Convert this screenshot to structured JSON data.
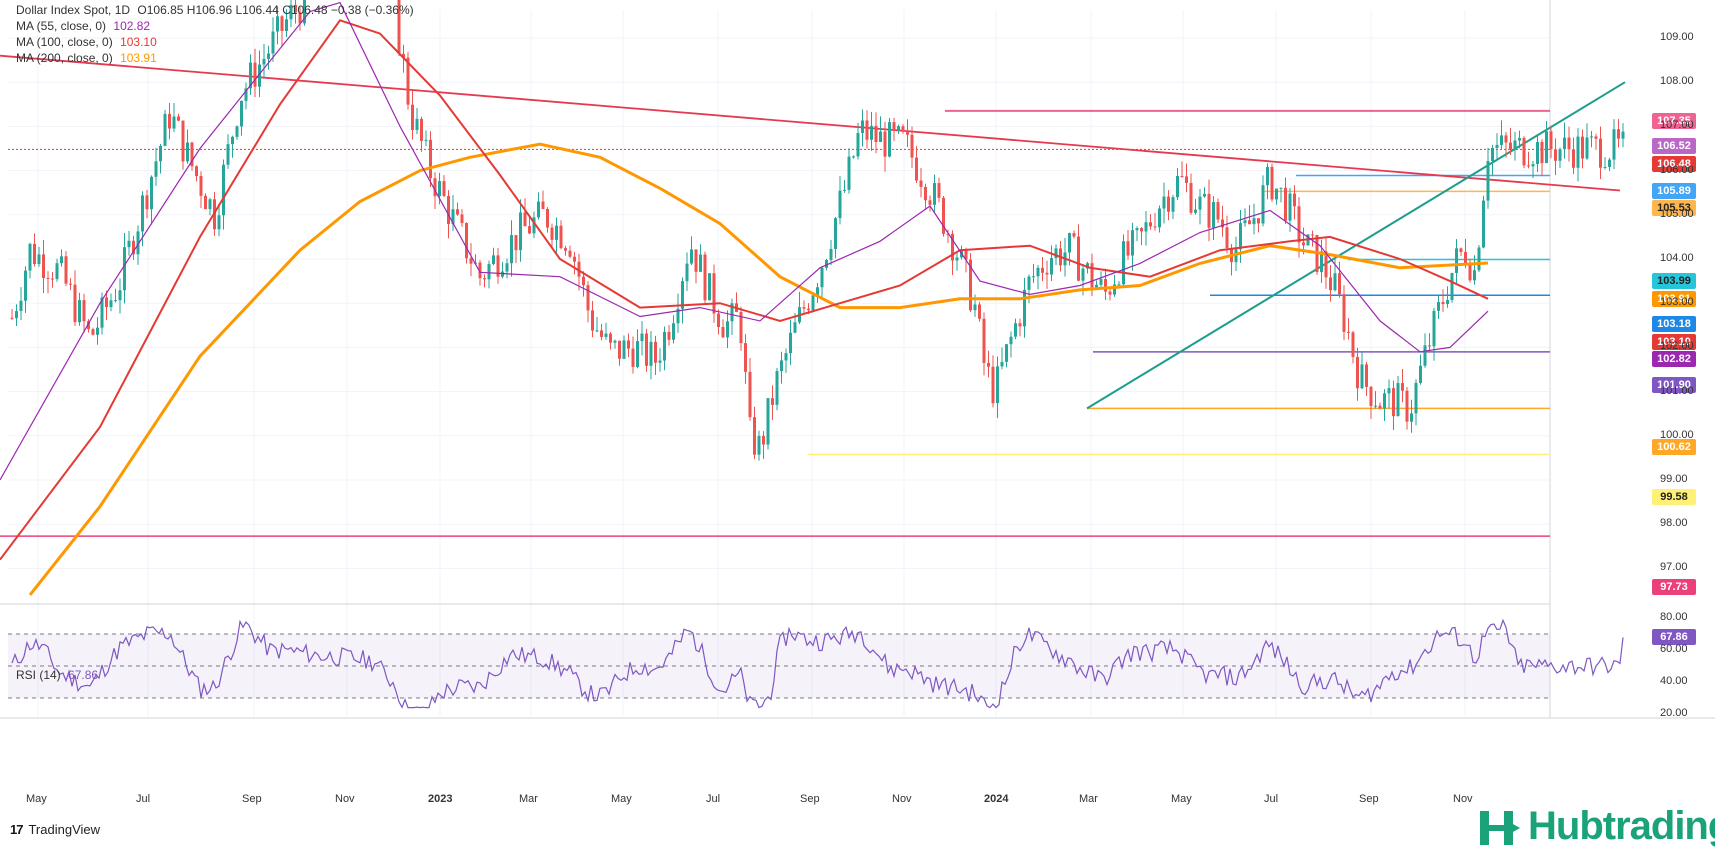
{
  "legend": {
    "title": "Dollar Index Spot, 1D",
    "ohlc": "O106.85 H106.96 L106.44 C106.48 −0.38 (−0.36%)",
    "ma55_label": "MA (55, close, 0)",
    "ma55_value": "102.82",
    "ma100_label": "MA (100, close, 0)",
    "ma100_value": "103.10",
    "ma200_label": "MA (200, close, 0)",
    "ma200_value": "103.91",
    "rsi_label": "RSI (14)",
    "rsi_value": "67.86"
  },
  "branding": {
    "tradingview": "TradingView",
    "hubtrading": "Hubtrading"
  },
  "colors": {
    "up": "#26a69a",
    "down": "#ef5350",
    "ma55": "#9c27b0",
    "ma100": "#e53935",
    "ma200": "#ff9800",
    "rsi": "#7e57c2",
    "trend_green": "#1b9e8a",
    "trend_red": "#e53950"
  },
  "chart_data": {
    "type": "candlestick",
    "title": "Dollar Index Spot, 1D",
    "x_ticks": [
      "May",
      "Jul",
      "Sep",
      "Nov",
      "2023",
      "Mar",
      "May",
      "Jul",
      "Sep",
      "Nov",
      "2024",
      "Mar",
      "May",
      "Jul",
      "Sep",
      "Nov"
    ],
    "y_ticks": [
      "109.00",
      "108.00",
      "107.00",
      "106.00",
      "105.00",
      "104.00",
      "103.00",
      "102.00",
      "101.00",
      "100.00",
      "99.00",
      "98.00",
      "97.00"
    ],
    "y_range": [
      96.2,
      109.9
    ],
    "price_levels": [
      {
        "label": "107.35",
        "value": 107.35,
        "color": "#f06292"
      },
      {
        "label": "106.52",
        "value": 106.52,
        "color": "#ba68c8"
      },
      {
        "label": "106.48",
        "value": 106.48,
        "color": "#e53935"
      },
      {
        "label": "105.89",
        "value": 105.89,
        "color": "#42a5f5"
      },
      {
        "label": "105.53",
        "value": 105.53,
        "color": "#ffb74d"
      },
      {
        "label": "103.99",
        "value": 103.99,
        "color": "#26c6da"
      },
      {
        "label": "103.91",
        "value": 103.91,
        "color": "#ff9800"
      },
      {
        "label": "103.18",
        "value": 103.18,
        "color": "#1e88e5"
      },
      {
        "label": "103.10",
        "value": 103.1,
        "color": "#e53935"
      },
      {
        "label": "102.82",
        "value": 102.82,
        "color": "#9c27b0"
      },
      {
        "label": "101.90",
        "value": 101.9,
        "color": "#7e57c2"
      },
      {
        "label": "100.62",
        "value": 100.62,
        "color": "#ffa726"
      },
      {
        "label": "99.58",
        "value": 99.58,
        "color": "#fff176"
      },
      {
        "label": "97.73",
        "value": 97.73,
        "color": "#ec407a"
      }
    ],
    "close_series": [
      [
        0,
        101.0
      ],
      [
        10,
        102.5
      ],
      [
        30,
        104.2
      ],
      [
        60,
        103.7
      ],
      [
        90,
        102.2
      ],
      [
        120,
        103.5
      ],
      [
        150,
        105.8
      ],
      [
        170,
        107.3
      ],
      [
        190,
        106.2
      ],
      [
        215,
        105.0
      ],
      [
        240,
        107.7
      ],
      [
        265,
        108.6
      ],
      [
        290,
        109.5
      ],
      [
        320,
        110.2
      ],
      [
        350,
        110.8
      ],
      [
        375,
        111.0
      ],
      [
        395,
        109.6
      ],
      [
        410,
        107.4
      ],
      [
        430,
        106.0
      ],
      [
        455,
        104.8
      ],
      [
        480,
        103.6
      ],
      [
        500,
        104.1
      ],
      [
        520,
        104.6
      ],
      [
        545,
        105.0
      ],
      [
        570,
        104.4
      ],
      [
        590,
        102.7
      ],
      [
        610,
        101.9
      ],
      [
        635,
        102.0
      ],
      [
        655,
        101.7
      ],
      [
        670,
        102.6
      ],
      [
        690,
        104.4
      ],
      [
        710,
        103.2
      ],
      [
        725,
        102.5
      ],
      [
        740,
        102.7
      ],
      [
        750,
        100.0
      ],
      [
        760,
        99.7
      ],
      [
        775,
        101.1
      ],
      [
        795,
        102.4
      ],
      [
        820,
        103.8
      ],
      [
        845,
        105.6
      ],
      [
        860,
        106.9
      ],
      [
        880,
        106.7
      ],
      [
        905,
        106.6
      ],
      [
        925,
        105.8
      ],
      [
        940,
        105.1
      ],
      [
        960,
        104.0
      ],
      [
        975,
        102.9
      ],
      [
        985,
        101.5
      ],
      [
        995,
        101.0
      ],
      [
        1010,
        102.1
      ],
      [
        1030,
        103.5
      ],
      [
        1050,
        104.1
      ],
      [
        1070,
        104.2
      ],
      [
        1090,
        103.6
      ],
      [
        1105,
        103.2
      ],
      [
        1120,
        103.9
      ],
      [
        1140,
        104.4
      ],
      [
        1160,
        105.3
      ],
      [
        1180,
        105.8
      ],
      [
        1200,
        105.2
      ],
      [
        1220,
        104.9
      ],
      [
        1235,
        104.2
      ],
      [
        1255,
        105.0
      ],
      [
        1270,
        105.8
      ],
      [
        1285,
        105.3
      ],
      [
        1305,
        104.3
      ],
      [
        1320,
        104.0
      ],
      [
        1335,
        103.3
      ],
      [
        1345,
        102.6
      ],
      [
        1360,
        101.3
      ],
      [
        1380,
        100.8
      ],
      [
        1395,
        100.8
      ],
      [
        1410,
        100.6
      ],
      [
        1425,
        101.8
      ],
      [
        1440,
        102.9
      ],
      [
        1455,
        103.9
      ],
      [
        1465,
        104.2
      ],
      [
        1475,
        103.7
      ],
      [
        1482,
        105.3
      ],
      [
        1488,
        106.5
      ]
    ],
    "ma55": [
      [
        0,
        99
      ],
      [
        100,
        103
      ],
      [
        200,
        106.5
      ],
      [
        260,
        108.2
      ],
      [
        310,
        109.6
      ],
      [
        340,
        109.8
      ],
      [
        400,
        107
      ],
      [
        480,
        103.7
      ],
      [
        560,
        103.6
      ],
      [
        640,
        102.7
      ],
      [
        700,
        102.9
      ],
      [
        760,
        102.6
      ],
      [
        820,
        103.8
      ],
      [
        880,
        104.4
      ],
      [
        930,
        105.2
      ],
      [
        980,
        103.5
      ],
      [
        1030,
        103.2
      ],
      [
        1080,
        103.4
      ],
      [
        1140,
        103.9
      ],
      [
        1200,
        104.6
      ],
      [
        1270,
        105.1
      ],
      [
        1320,
        104.3
      ],
      [
        1380,
        102.6
      ],
      [
        1420,
        101.9
      ],
      [
        1450,
        102.0
      ],
      [
        1488,
        102.82
      ]
    ],
    "ma100": [
      [
        0,
        97.2
      ],
      [
        100,
        100.2
      ],
      [
        200,
        104.5
      ],
      [
        280,
        107.5
      ],
      [
        340,
        109.4
      ],
      [
        380,
        109.1
      ],
      [
        440,
        107.7
      ],
      [
        500,
        105.9
      ],
      [
        560,
        104.0
      ],
      [
        640,
        102.9
      ],
      [
        720,
        103.0
      ],
      [
        780,
        102.6
      ],
      [
        840,
        103.0
      ],
      [
        900,
        103.4
      ],
      [
        960,
        104.2
      ],
      [
        1030,
        104.3
      ],
      [
        1090,
        103.8
      ],
      [
        1150,
        103.6
      ],
      [
        1220,
        104.2
      ],
      [
        1290,
        104.4
      ],
      [
        1330,
        104.5
      ],
      [
        1400,
        104.0
      ],
      [
        1450,
        103.5
      ],
      [
        1488,
        103.1
      ]
    ],
    "ma200": [
      [
        30,
        96.4
      ],
      [
        100,
        98.4
      ],
      [
        200,
        101.8
      ],
      [
        300,
        104.2
      ],
      [
        360,
        105.3
      ],
      [
        420,
        106.0
      ],
      [
        470,
        106.3
      ],
      [
        540,
        106.6
      ],
      [
        600,
        106.3
      ],
      [
        660,
        105.6
      ],
      [
        720,
        104.8
      ],
      [
        780,
        103.6
      ],
      [
        840,
        102.9
      ],
      [
        900,
        102.9
      ],
      [
        960,
        103.1
      ],
      [
        1020,
        103.1
      ],
      [
        1080,
        103.3
      ],
      [
        1140,
        103.4
      ],
      [
        1200,
        103.9
      ],
      [
        1270,
        104.3
      ],
      [
        1330,
        104.1
      ],
      [
        1400,
        103.8
      ],
      [
        1488,
        103.91
      ]
    ],
    "rsi": {
      "name": "RSI (14)",
      "last": 67.86,
      "y_ticks": [
        "80.00",
        "60.00",
        "40.00",
        "20.00"
      ],
      "upper": 70,
      "middle": 50,
      "lower": 30
    }
  }
}
